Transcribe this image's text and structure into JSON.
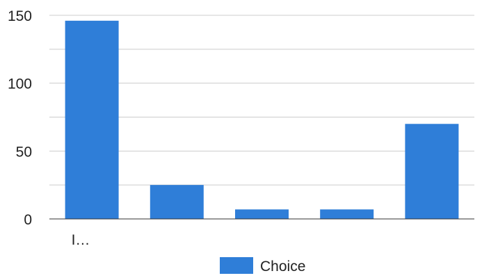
{
  "chart_data": {
    "type": "bar",
    "categories": [
      "I…",
      "",
      "",
      "",
      ""
    ],
    "series": [
      {
        "name": "Choice",
        "values": [
          146,
          25,
          7,
          7,
          70
        ],
        "color": "#2f7ed8"
      }
    ],
    "ylim": [
      0,
      150
    ],
    "yticks": [
      0,
      50,
      100,
      150
    ],
    "grid": true,
    "legend": "bottom"
  }
}
